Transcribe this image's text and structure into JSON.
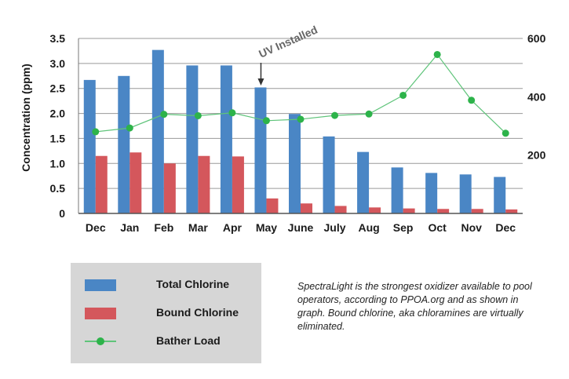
{
  "colors": {
    "total": "#4a86c5",
    "bound": "#d4575c",
    "bather": "#2db34a",
    "bather_line": "#5fc47a",
    "grid": "#9a9a9a"
  },
  "chart_data": {
    "type": "bar",
    "title": "",
    "xlabel": "",
    "ylabel": "Concentration (ppm)",
    "y2label": "",
    "ylim": [
      0,
      3.5
    ],
    "y2lim": [
      0,
      600
    ],
    "yticks": [
      "0",
      "0.5",
      "1.0",
      "1.5",
      "2.0",
      "2.5",
      "3.0",
      "3.5"
    ],
    "y2ticks": [
      "200",
      "400",
      "600"
    ],
    "grid": true,
    "categories": [
      "Dec",
      "Jan",
      "Feb",
      "Mar",
      "Apr",
      "May",
      "June",
      "July",
      "Aug",
      "Sep",
      "Oct",
      "Nov",
      "Dec"
    ],
    "series": [
      {
        "name": "Total Chlorine",
        "type": "bar",
        "axis": "left",
        "values": [
          2.67,
          2.75,
          3.27,
          2.96,
          2.96,
          2.52,
          1.99,
          1.54,
          1.23,
          0.92,
          0.81,
          0.78,
          0.73
        ]
      },
      {
        "name": "Bound Chlorine",
        "type": "bar",
        "axis": "left",
        "values": [
          1.15,
          1.22,
          1.0,
          1.15,
          1.14,
          0.3,
          0.2,
          0.15,
          0.12,
          0.1,
          0.09,
          0.09,
          0.08
        ]
      },
      {
        "name": "Bather Load",
        "type": "line",
        "axis": "right",
        "values": [
          280,
          293,
          340,
          335,
          345,
          318,
          323,
          336,
          341,
          405,
          545,
          388,
          275
        ]
      }
    ],
    "annotation": {
      "text": "UV Installed",
      "category_index": 5
    }
  },
  "legend": {
    "total_label": "Total Chlorine",
    "bound_label": "Bound Chlorine",
    "bather_label": "Bather Load"
  },
  "note": "SpectraLight is the strongest oxidizer available to pool operators, according to PPOA.org and as shown in graph.  Bound chlorine, aka chloramines are virtually eliminated."
}
